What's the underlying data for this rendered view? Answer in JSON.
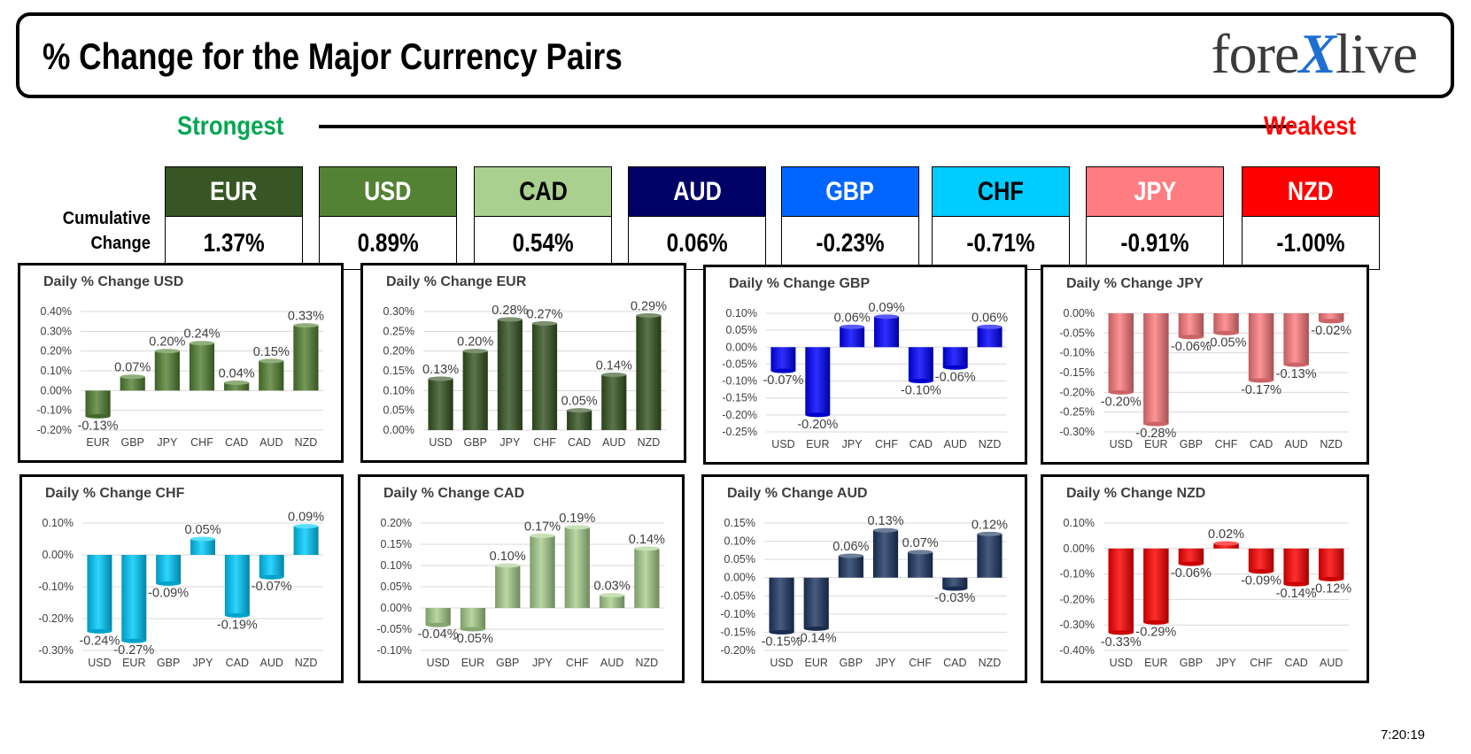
{
  "header": {
    "title": "% Change for the Major Currency Pairs",
    "logo_left": "fore",
    "logo_mark": "X",
    "logo_right": "live"
  },
  "ranking": {
    "strongest_label": "Strongest",
    "weakest_label": "Weakest",
    "cumulative_label_line1": "Cumulative",
    "cumulative_label_line2": "Change",
    "currencies": [
      {
        "code": "EUR",
        "value": "1.37%",
        "bg": "#375623",
        "fg": "#ffffff"
      },
      {
        "code": "USD",
        "value": "0.89%",
        "bg": "#548235",
        "fg": "#ffffff"
      },
      {
        "code": "CAD",
        "value": "0.54%",
        "bg": "#a9d08e",
        "fg": "#000000"
      },
      {
        "code": "AUD",
        "value": "0.06%",
        "bg": "#000066",
        "fg": "#ffffff"
      },
      {
        "code": "GBP",
        "value": "-0.23%",
        "bg": "#0066ff",
        "fg": "#ffffff"
      },
      {
        "code": "CHF",
        "value": "-0.71%",
        "bg": "#00ccff",
        "fg": "#000000"
      },
      {
        "code": "JPY",
        "value": "-0.91%",
        "bg": "#ff7c80",
        "fg": "#ffffff"
      },
      {
        "code": "NZD",
        "value": "-1.00%",
        "bg": "#ff0000",
        "fg": "#ffffff"
      }
    ]
  },
  "timestamp": "7:20:19",
  "chart_data": [
    {
      "type": "bar",
      "title": "Daily % Change USD",
      "categories": [
        "EUR",
        "GBP",
        "JPY",
        "CHF",
        "CAD",
        "AUD",
        "NZD"
      ],
      "values": [
        -0.13,
        0.07,
        0.2,
        0.24,
        0.04,
        0.15,
        0.33
      ],
      "value_labels": [
        "-0.13%",
        "0.07%",
        "0.20%",
        "0.24%",
        "0.04%",
        "0.15%",
        "0.33%"
      ],
      "ylim": [
        -0.2,
        0.4
      ],
      "yticks": [
        0.4,
        0.3,
        0.2,
        0.1,
        0.0,
        -0.1,
        -0.2
      ],
      "ytick_labels": [
        "0.40%",
        "0.30%",
        "0.20%",
        "0.10%",
        "0.00%",
        "-0.10%",
        "-0.20%"
      ],
      "color": "#548235"
    },
    {
      "type": "bar",
      "title": "Daily % Change EUR",
      "categories": [
        "USD",
        "GBP",
        "JPY",
        "CHF",
        "CAD",
        "AUD",
        "NZD"
      ],
      "values": [
        0.13,
        0.2,
        0.28,
        0.27,
        0.05,
        0.14,
        0.29
      ],
      "value_labels": [
        "0.13%",
        "0.20%",
        "0.28%",
        "0.27%",
        "0.05%",
        "0.14%",
        "0.29%"
      ],
      "ylim": [
        0.0,
        0.3
      ],
      "yticks": [
        0.3,
        0.25,
        0.2,
        0.15,
        0.1,
        0.05,
        0.0
      ],
      "ytick_labels": [
        "0.30%",
        "0.25%",
        "0.20%",
        "0.15%",
        "0.10%",
        "0.05%",
        "0.00%"
      ],
      "color": "#375623"
    },
    {
      "type": "bar",
      "title": "Daily % Change GBP",
      "categories": [
        "USD",
        "EUR",
        "JPY",
        "CHF",
        "CAD",
        "AUD",
        "NZD"
      ],
      "values": [
        -0.07,
        -0.2,
        0.06,
        0.09,
        -0.1,
        -0.06,
        0.06
      ],
      "value_labels": [
        "-0.07%",
        "-0.20%",
        "0.06%",
        "0.09%",
        "-0.10%",
        "-0.06%",
        "0.06%"
      ],
      "ylim": [
        -0.25,
        0.1
      ],
      "yticks": [
        0.1,
        0.05,
        0.0,
        -0.05,
        -0.1,
        -0.15,
        -0.2,
        -0.25
      ],
      "ytick_labels": [
        "0.10%",
        "0.05%",
        "0.00%",
        "-0.05%",
        "-0.10%",
        "-0.15%",
        "-0.20%",
        "-0.25%"
      ],
      "color": "#0000ff"
    },
    {
      "type": "bar",
      "title": "Daily % Change JPY",
      "categories": [
        "USD",
        "EUR",
        "GBP",
        "CHF",
        "CAD",
        "AUD",
        "NZD"
      ],
      "values": [
        -0.2,
        -0.28,
        -0.06,
        -0.05,
        -0.17,
        -0.13,
        -0.02
      ],
      "value_labels": [
        "-0.20%",
        "-0.28%",
        "-0.06%",
        "-0.05%",
        "-0.17%",
        "-0.13%",
        "-0.02%"
      ],
      "ylim": [
        -0.3,
        0.0
      ],
      "yticks": [
        0.0,
        -0.05,
        -0.1,
        -0.15,
        -0.2,
        -0.25,
        -0.3
      ],
      "ytick_labels": [
        "0.00%",
        "-0.05%",
        "-0.10%",
        "-0.15%",
        "-0.20%",
        "-0.25%",
        "-0.30%"
      ],
      "color": "#ff7c80"
    },
    {
      "type": "bar",
      "title": "Daily % Change CHF",
      "categories": [
        "USD",
        "EUR",
        "GBP",
        "JPY",
        "CAD",
        "AUD",
        "NZD"
      ],
      "values": [
        -0.24,
        -0.27,
        -0.09,
        0.05,
        -0.19,
        -0.07,
        0.09
      ],
      "value_labels": [
        "-0.24%",
        "-0.27%",
        "-0.09%",
        "0.05%",
        "-0.19%",
        "-0.07%",
        "0.09%"
      ],
      "ylim": [
        -0.3,
        0.1
      ],
      "yticks": [
        0.1,
        0.0,
        -0.1,
        -0.2,
        -0.3
      ],
      "ytick_labels": [
        "0.10%",
        "0.00%",
        "-0.10%",
        "-0.20%",
        "-0.30%"
      ],
      "color": "#00ccff"
    },
    {
      "type": "bar",
      "title": "Daily % Change CAD",
      "categories": [
        "USD",
        "EUR",
        "GBP",
        "JPY",
        "CHF",
        "AUD",
        "NZD"
      ],
      "values": [
        -0.04,
        -0.05,
        0.1,
        0.17,
        0.19,
        0.03,
        0.14
      ],
      "value_labels": [
        "-0.04%",
        "-0.05%",
        "0.10%",
        "0.17%",
        "0.19%",
        "0.03%",
        "0.14%"
      ],
      "ylim": [
        -0.1,
        0.2
      ],
      "yticks": [
        0.2,
        0.15,
        0.1,
        0.05,
        0.0,
        -0.05,
        -0.1
      ],
      "ytick_labels": [
        "0.20%",
        "0.15%",
        "0.10%",
        "0.05%",
        "0.00%",
        "-0.05%",
        "-0.10%"
      ],
      "color": "#a9d08e"
    },
    {
      "type": "bar",
      "title": "Daily % Change AUD",
      "categories": [
        "USD",
        "EUR",
        "GBP",
        "JPY",
        "CHF",
        "CAD",
        "NZD"
      ],
      "values": [
        -0.15,
        -0.14,
        0.06,
        0.13,
        0.07,
        -0.03,
        0.12
      ],
      "value_labels": [
        "-0.15%",
        "-0.14%",
        "0.06%",
        "0.13%",
        "0.07%",
        "-0.03%",
        "0.12%"
      ],
      "ylim": [
        -0.2,
        0.15
      ],
      "yticks": [
        0.15,
        0.1,
        0.05,
        0.0,
        -0.05,
        -0.1,
        -0.15,
        -0.2
      ],
      "ytick_labels": [
        "0.15%",
        "0.10%",
        "0.05%",
        "0.00%",
        "-0.05%",
        "-0.10%",
        "-0.15%",
        "-0.20%"
      ],
      "color": "#1f3864"
    },
    {
      "type": "bar",
      "title": "Daily % Change NZD",
      "categories": [
        "USD",
        "EUR",
        "GBP",
        "JPY",
        "CHF",
        "CAD",
        "AUD"
      ],
      "values": [
        -0.33,
        -0.29,
        -0.06,
        0.02,
        -0.09,
        -0.14,
        -0.12
      ],
      "value_labels": [
        "-0.33%",
        "-0.29%",
        "-0.06%",
        "0.02%",
        "-0.09%",
        "-0.14%",
        "-0.12%"
      ],
      "ylim": [
        -0.4,
        0.1
      ],
      "yticks": [
        0.1,
        0.0,
        -0.1,
        -0.2,
        -0.3,
        -0.4
      ],
      "ytick_labels": [
        "0.10%",
        "0.00%",
        "-0.10%",
        "-0.20%",
        "-0.30%",
        "-0.40%"
      ],
      "color": "#ff0000"
    }
  ]
}
